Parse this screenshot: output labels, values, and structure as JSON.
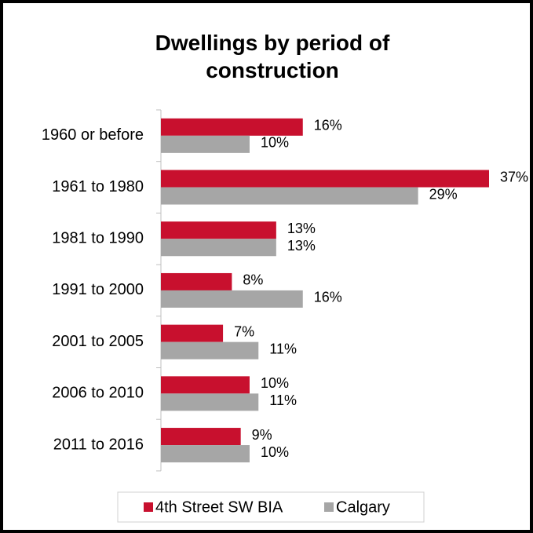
{
  "chart_data": {
    "type": "hbar",
    "title": "Dwellings by period of construction",
    "categories": [
      "1960 or before",
      "1961 to 1980",
      "1981 to 1990",
      "1991 to 2000",
      "2001 to 2005",
      "2006 to 2010",
      "2011 to 2016"
    ],
    "series": [
      {
        "name": "4th Street SW BIA",
        "color": "#c8102e",
        "values": [
          16,
          37,
          13,
          8,
          7,
          10,
          9
        ],
        "value_labels": [
          "16%",
          "37%",
          "13%",
          "8%",
          "7%",
          "10%",
          "9%"
        ]
      },
      {
        "name": "Calgary",
        "color": "#a6a6a6",
        "values": [
          10,
          29,
          13,
          16,
          11,
          11,
          10
        ],
        "value_labels": [
          "10%",
          "29%",
          "13%",
          "16%",
          "11%",
          "11%",
          "10%"
        ]
      }
    ],
    "legend": "bottom"
  }
}
